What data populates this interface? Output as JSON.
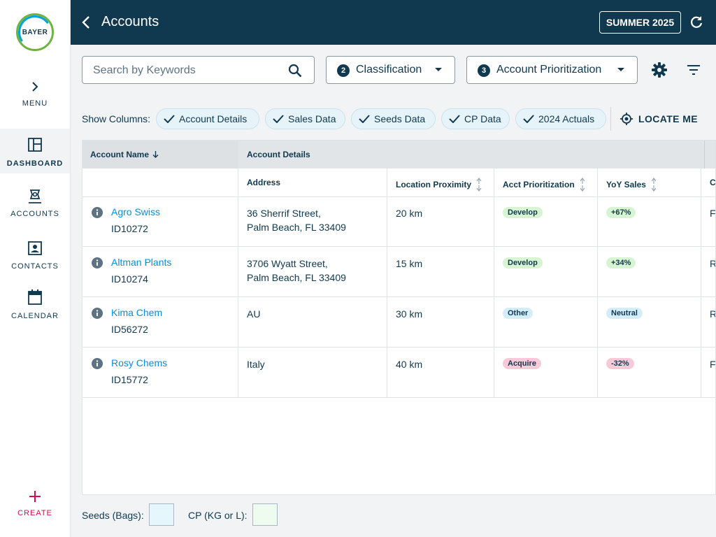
{
  "brand": {
    "logo_text": "BAYER"
  },
  "sidebar": {
    "menu_label": "MENU",
    "items": [
      {
        "label": "DASHBOARD",
        "icon": "dashboard-icon",
        "active": true
      },
      {
        "label": "ACCOUNTS",
        "icon": "accounts-icon",
        "active": false
      },
      {
        "label": "CONTACTS",
        "icon": "contacts-icon",
        "active": false
      },
      {
        "label": "CALENDAR",
        "icon": "calendar-icon",
        "active": false
      }
    ],
    "create_label": "CREATE"
  },
  "header": {
    "title": "Accounts",
    "season_label": "SUMMER 2025"
  },
  "toolbar": {
    "search_placeholder": "Search by Keywords",
    "classification": {
      "count": "2",
      "label": "Classification"
    },
    "prioritization": {
      "count": "3",
      "label": "Account Prioritization"
    }
  },
  "columns_bar": {
    "label": "Show Columns:",
    "chips": [
      "Account Details",
      "Sales Data",
      "Seeds Data",
      "CP Data",
      "2024 Actuals"
    ],
    "locate_label": "LOCATE ME"
  },
  "table": {
    "group_headers": {
      "account_name": "Account Name",
      "account_details": "Account Details"
    },
    "sub_headers": {
      "address": "Address",
      "proximity": "Location Proximity",
      "prioritization": "Acct Prioritization",
      "yoy": "YoY Sales",
      "next": "C"
    },
    "rows": [
      {
        "name": "Agro Swiss",
        "id": "ID10272",
        "addr1": "36 Sherrif Street,",
        "addr2": "Palm Beach, FL 33409",
        "proximity": "20 km",
        "priority": "Develop",
        "yoy": "+67%",
        "next": "F"
      },
      {
        "name": "Altman Plants",
        "id": "ID10274",
        "addr1": "3706 Wyatt Street,",
        "addr2": "Palm Beach, FL 33409",
        "proximity": "15 km",
        "priority": "Develop",
        "yoy": "+34%",
        "next": "R"
      },
      {
        "name": "Kima Chem",
        "id": "ID56272",
        "addr1": "AU",
        "addr2": "",
        "proximity": "30 km",
        "priority": "Other",
        "yoy": "Neutral",
        "next": "R"
      },
      {
        "name": "Rosy Chems",
        "id": "ID15772",
        "addr1": "Italy",
        "addr2": "",
        "proximity": "40 km",
        "priority": "Acquire",
        "yoy": "-32%",
        "next": "F"
      }
    ]
  },
  "legend": {
    "seeds_label": "Seeds (Bags):",
    "cp_label": "CP (KG or L):"
  },
  "colors": {
    "header_bg": "#10384f",
    "link": "#0091df",
    "create": "#d30f4b",
    "seeds_swatch": "#e6f6fd",
    "cp_swatch": "#eefbef"
  }
}
